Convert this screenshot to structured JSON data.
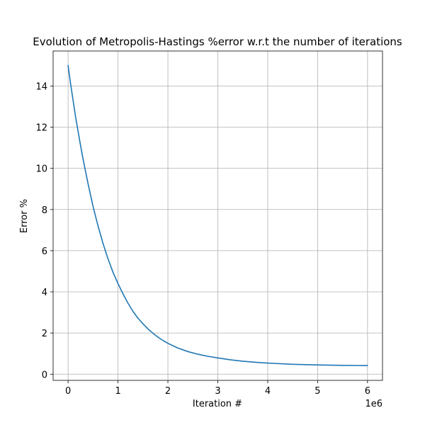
{
  "chart_data": {
    "type": "line",
    "title": "Evolution of Metropolis-Hastings %error w.r.t the number of iterations",
    "xlabel": "Iteration #",
    "ylabel": "Error %",
    "x_offset_label": "1e6",
    "xlim": [
      -0.3,
      6.3
    ],
    "ylim": [
      -0.3,
      15.7
    ],
    "x_ticks": [
      0,
      1,
      2,
      3,
      4,
      5,
      6
    ],
    "x_tick_labels": [
      "0",
      "1",
      "2",
      "3",
      "4",
      "5",
      "6"
    ],
    "y_ticks": [
      0,
      2,
      4,
      6,
      8,
      10,
      12,
      14
    ],
    "y_tick_labels": [
      "0",
      "2",
      "4",
      "6",
      "8",
      "10",
      "12",
      "14"
    ],
    "grid": true,
    "line_color": "#1f77b4",
    "series": [
      {
        "x": [
          0,
          0.05,
          0.1,
          0.15,
          0.2,
          0.25,
          0.3,
          0.4,
          0.5,
          0.6,
          0.7,
          0.8,
          0.9,
          1.0,
          1.1,
          1.2,
          1.3,
          1.4,
          1.5,
          1.6,
          1.7,
          1.8,
          1.9,
          2.0,
          2.2,
          2.4,
          2.6,
          2.8,
          3.0,
          3.25,
          3.5,
          3.75,
          4.0,
          4.5,
          5.0,
          5.5,
          6.0
        ],
        "y": [
          15.0,
          14.1,
          13.3,
          12.5,
          11.8,
          11.1,
          10.45,
          9.25,
          8.15,
          7.2,
          6.35,
          5.6,
          4.95,
          4.4,
          3.9,
          3.45,
          3.05,
          2.72,
          2.45,
          2.2,
          1.99,
          1.8,
          1.64,
          1.5,
          1.27,
          1.1,
          0.97,
          0.87,
          0.79,
          0.7,
          0.63,
          0.58,
          0.54,
          0.48,
          0.45,
          0.43,
          0.42
        ]
      }
    ]
  }
}
